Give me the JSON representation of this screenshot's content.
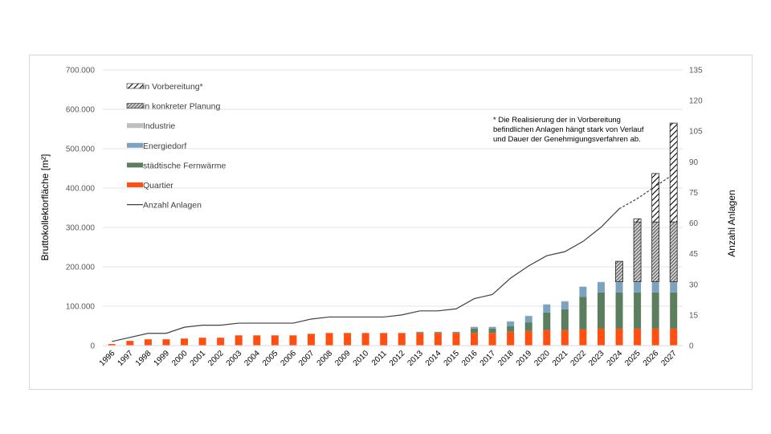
{
  "chart_data": {
    "type": "bar",
    "stacked": true,
    "title": "",
    "ylabel": "Bruttokollektorfläche [m²]",
    "y2label": "Anzahl Anlagen",
    "ylim": [
      0,
      700000
    ],
    "y2lim": [
      0,
      135
    ],
    "yticks": [
      "0",
      "100.000",
      "200.000",
      "300.000",
      "400.000",
      "500.000",
      "600.000",
      "700.000"
    ],
    "y2ticks": [
      "0",
      "15",
      "30",
      "45",
      "60",
      "75",
      "90",
      "105",
      "120",
      "135"
    ],
    "grid": true,
    "legend_position": "top-left",
    "categories": [
      "1996",
      "1997",
      "1998",
      "1999",
      "2000",
      "2001",
      "2002",
      "2003",
      "2004",
      "2005",
      "2006",
      "2007",
      "2008",
      "2009",
      "2010",
      "2011",
      "2012",
      "2013",
      "2014",
      "2015",
      "2016",
      "2017",
      "2018",
      "2019",
      "2020",
      "2021",
      "2022",
      "2023",
      "2024",
      "2025",
      "2026",
      "2027"
    ],
    "series": [
      {
        "name": "Quartier",
        "color": "#FF5011",
        "pattern": "solid",
        "values": [
          4000,
          12000,
          16000,
          16000,
          18000,
          20000,
          20000,
          26000,
          26000,
          26000,
          26000,
          30000,
          32000,
          32000,
          32000,
          32000,
          32000,
          32000,
          32000,
          32000,
          32000,
          32000,
          35000,
          37000,
          39000,
          39000,
          41000,
          43000,
          43000,
          43000,
          43000,
          43000
        ]
      },
      {
        "name": "städtische Fernwärme",
        "color": "#5B7F5E",
        "pattern": "solid",
        "values": [
          0,
          0,
          0,
          0,
          0,
          0,
          0,
          0,
          0,
          0,
          0,
          0,
          0,
          0,
          0,
          0,
          0,
          2000,
          2000,
          2000,
          11000,
          11000,
          14000,
          22000,
          45000,
          53000,
          83000,
          92000,
          92000,
          92000,
          92000,
          92000
        ]
      },
      {
        "name": "Energiedorf",
        "color": "#7BA3C0",
        "pattern": "solid",
        "values": [
          0,
          0,
          0,
          0,
          0,
          0,
          0,
          0,
          0,
          0,
          0,
          0,
          0,
          0,
          0,
          0,
          0,
          1000,
          1000,
          1000,
          4000,
          4000,
          12000,
          16000,
          20000,
          20000,
          25000,
          26000,
          26000,
          26000,
          26000,
          26000
        ]
      },
      {
        "name": "Industrie",
        "color": "#BFBFBF",
        "pattern": "solid",
        "values": [
          0,
          0,
          0,
          0,
          0,
          0,
          0,
          0,
          0,
          0,
          0,
          0,
          0,
          0,
          0,
          0,
          0,
          0,
          0,
          0,
          1000,
          1000,
          1000,
          1000,
          1000,
          1000,
          1000,
          1000,
          1000,
          1000,
          1000,
          1000
        ]
      },
      {
        "name": "in konkreter Planung",
        "color": "#595959",
        "pattern": "dense-hatch",
        "values": [
          0,
          0,
          0,
          0,
          0,
          0,
          0,
          0,
          0,
          0,
          0,
          0,
          0,
          0,
          0,
          0,
          0,
          0,
          0,
          0,
          0,
          0,
          0,
          0,
          0,
          0,
          0,
          0,
          52000,
          152000,
          152000,
          152000
        ]
      },
      {
        "name": "in Vorbereitung*",
        "color": "#000000",
        "pattern": "wide-hatch",
        "values": [
          0,
          0,
          0,
          0,
          0,
          0,
          0,
          0,
          0,
          0,
          0,
          0,
          0,
          0,
          0,
          0,
          0,
          0,
          0,
          0,
          0,
          0,
          0,
          0,
          0,
          0,
          0,
          0,
          0,
          8000,
          123000,
          251000
        ]
      }
    ],
    "line_series": {
      "name": "Anzahl Anlagen",
      "axis": "y2",
      "color": "#404040",
      "values": [
        2,
        4,
        6,
        6,
        9,
        10,
        10,
        11,
        11,
        11,
        11,
        13,
        14,
        14,
        14,
        14,
        15,
        17,
        17,
        18,
        23,
        25,
        33,
        39,
        44,
        46,
        51,
        58,
        67,
        72,
        78,
        84
      ],
      "dashed_from_index": 28
    },
    "legend": [
      "in Vorbereitung*",
      "in konkreter Planung",
      "Industrie",
      "Energiedorf",
      "städtische Fernwärme",
      "Quartier",
      "Anzahl Anlagen"
    ],
    "annotation": [
      "* Die Realisierung der in Vorbereitung",
      "befindlichen Anlagen hängt stark von Verlauf",
      "und Dauer der Genehmigungsverfahren ab."
    ]
  }
}
